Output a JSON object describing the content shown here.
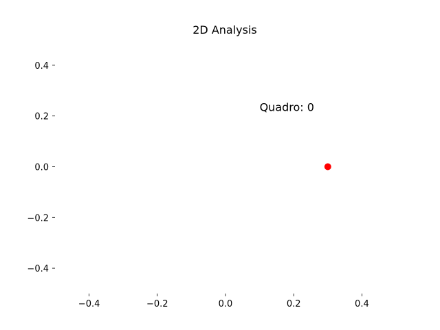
{
  "chart_data": {
    "type": "scatter",
    "title": "2D Analysis",
    "xlabel": "",
    "ylabel": "",
    "xlim": [
      -0.5,
      0.5
    ],
    "ylim": [
      -0.5,
      0.5
    ],
    "xticks": [
      -0.4,
      -0.2,
      0.0,
      0.2,
      0.4
    ],
    "yticks": [
      -0.4,
      -0.2,
      0.0,
      0.2,
      0.4
    ],
    "xtick_labels": [
      "−0.4",
      "−0.2",
      "0.0",
      "0.2",
      "0.4"
    ],
    "ytick_labels": [
      "−0.4",
      "−0.2",
      "0.0",
      "0.2",
      "0.4"
    ],
    "grid": false,
    "annotation": {
      "text": "Quadro: 0",
      "x": 0.18,
      "y": 0.22
    },
    "series": [
      {
        "color": "#ff0000",
        "points": [
          {
            "x": 0.3,
            "y": 0.0
          }
        ]
      }
    ]
  }
}
